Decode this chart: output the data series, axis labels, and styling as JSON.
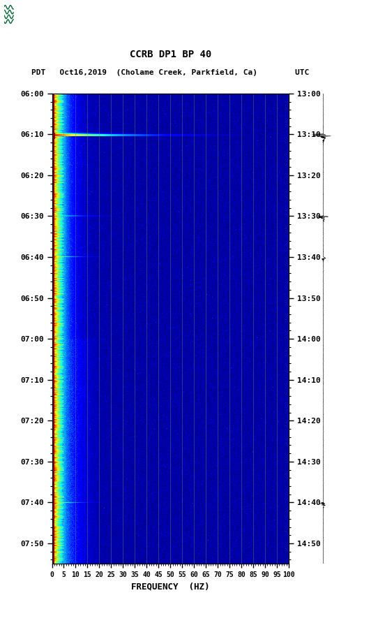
{
  "title_line1": "CCRB DP1 BP 40",
  "title_line2_pdt": "PDT   Oct16,2019  (Cholame Creek, Parkfield, Ca)        UTC",
  "xlabel": "FREQUENCY  (HZ)",
  "freq_min": 0,
  "freq_max": 100,
  "freq_ticks": [
    0,
    5,
    10,
    15,
    20,
    25,
    30,
    35,
    40,
    45,
    50,
    55,
    60,
    65,
    70,
    75,
    80,
    85,
    90,
    95,
    100
  ],
  "left_time_labels": [
    "06:00",
    "06:10",
    "06:20",
    "06:30",
    "06:40",
    "06:50",
    "07:00",
    "07:10",
    "07:20",
    "07:30",
    "07:40",
    "07:50"
  ],
  "right_time_labels": [
    "13:00",
    "13:10",
    "13:20",
    "13:30",
    "13:40",
    "13:50",
    "14:00",
    "14:10",
    "14:20",
    "14:30",
    "14:40",
    "14:50"
  ],
  "n_time_bins": 1150,
  "n_freq_bins": 400,
  "background_color": "white",
  "usgs_color": "#006633",
  "spectrogram_colormap": "jet",
  "vertical_line_freqs": [
    5,
    10,
    15,
    20,
    25,
    30,
    35,
    40,
    45,
    50,
    55,
    60,
    65,
    70,
    75,
    80,
    85,
    90,
    95,
    100
  ],
  "vertical_line_color": "#888866",
  "vertical_line_alpha": 0.45,
  "total_minutes": 115,
  "label_every_minutes": 10
}
